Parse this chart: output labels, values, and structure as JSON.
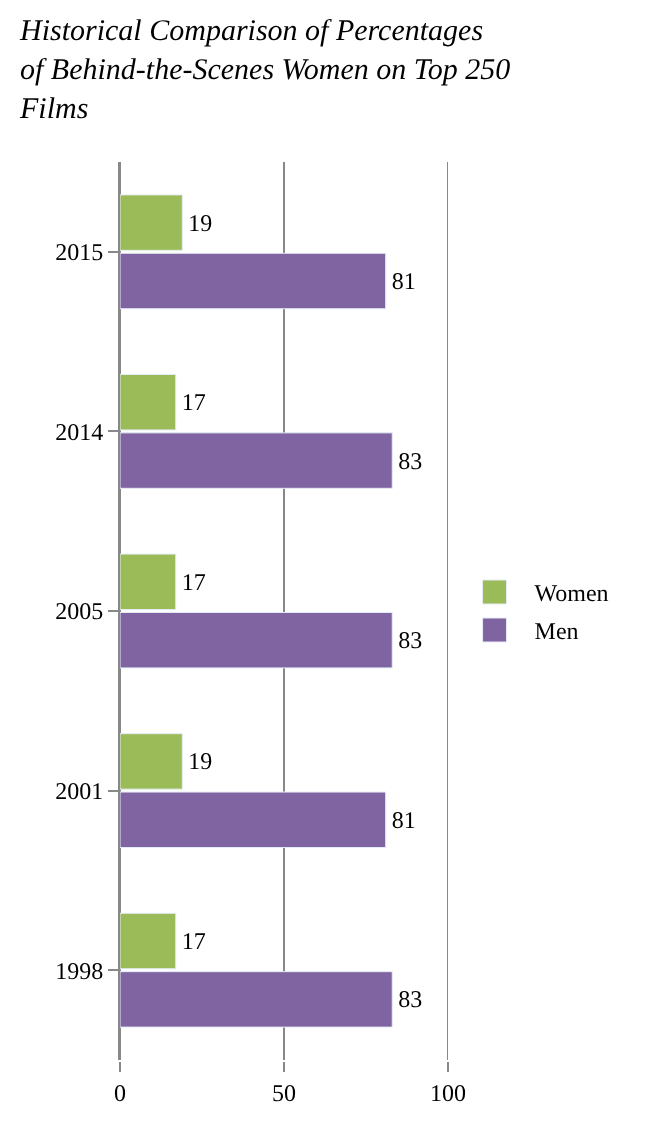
{
  "chart_data": {
    "type": "bar",
    "orientation": "horizontal",
    "title": "Historical Comparison of Percentages of Behind-the-Scenes Women on Top 250 Films",
    "categories": [
      "2015",
      "2014",
      "2005",
      "2001",
      "1998"
    ],
    "series": [
      {
        "name": "Women",
        "color": "#9bbb59",
        "values": [
          19,
          17,
          17,
          19,
          17
        ]
      },
      {
        "name": "Men",
        "color": "#8064a2",
        "values": [
          81,
          83,
          83,
          81,
          83
        ]
      }
    ],
    "xlim": [
      0,
      100
    ],
    "xticks": [
      0,
      50,
      100
    ],
    "grid": "x",
    "legend": "right",
    "data_labels": true
  }
}
